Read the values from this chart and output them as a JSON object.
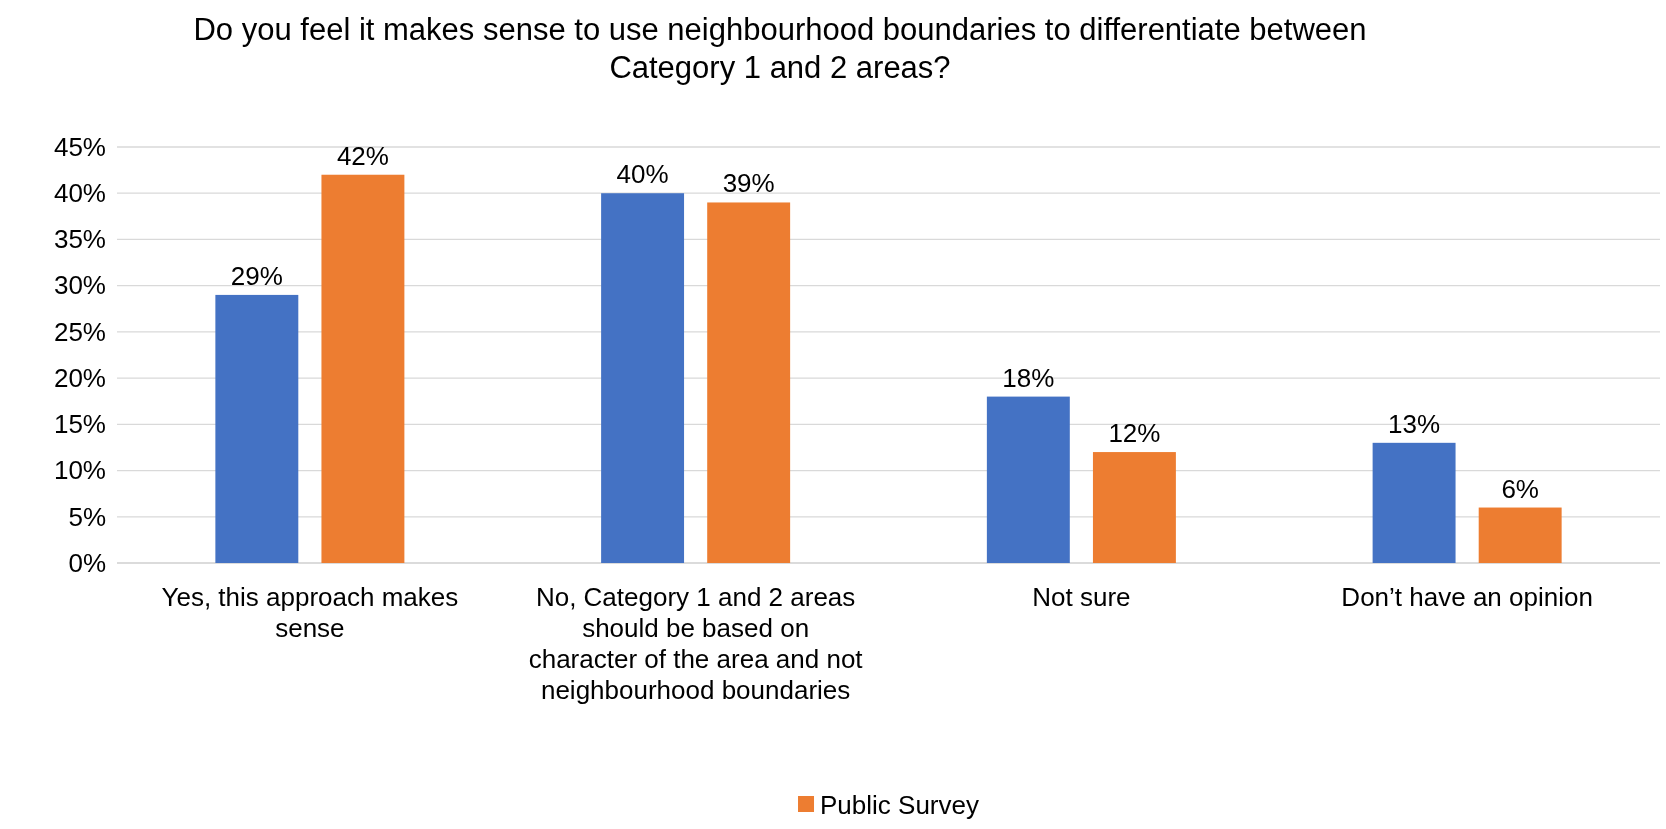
{
  "chart_data": {
    "type": "bar",
    "title": "Do you feel it makes sense to use neighbourhood boundaries to differentiate between Category 1 and 2 areas?",
    "categories": [
      "Yes, this approach makes sense",
      "No, Category 1 and 2 areas should be based on character of the area and not neighbourhood boundaries",
      "Not sure",
      "Don’t have an opinion"
    ],
    "series": [
      {
        "color": "#4472c4",
        "values": [
          29,
          40,
          18,
          13
        ],
        "value_labels": [
          "29%",
          "40%",
          "18%",
          "13%"
        ]
      },
      {
        "name": "Public Survey",
        "color": "#ed7d31",
        "values": [
          42,
          39,
          12,
          6
        ],
        "value_labels": [
          "42%",
          "39%",
          "12%",
          "6%"
        ]
      }
    ],
    "ylim": [
      0,
      45
    ],
    "yticks": [
      {
        "value": 0,
        "label": "0%"
      },
      {
        "value": 5,
        "label": "5%"
      },
      {
        "value": 10,
        "label": "10%"
      },
      {
        "value": 15,
        "label": "15%"
      },
      {
        "value": 20,
        "label": "20%"
      },
      {
        "value": 25,
        "label": "25%"
      },
      {
        "value": 30,
        "label": "30%"
      },
      {
        "value": 35,
        "label": "35%"
      },
      {
        "value": 40,
        "label": "40%"
      },
      {
        "value": 45,
        "label": "45%"
      }
    ],
    "grid": "y",
    "legend": "bottom"
  }
}
